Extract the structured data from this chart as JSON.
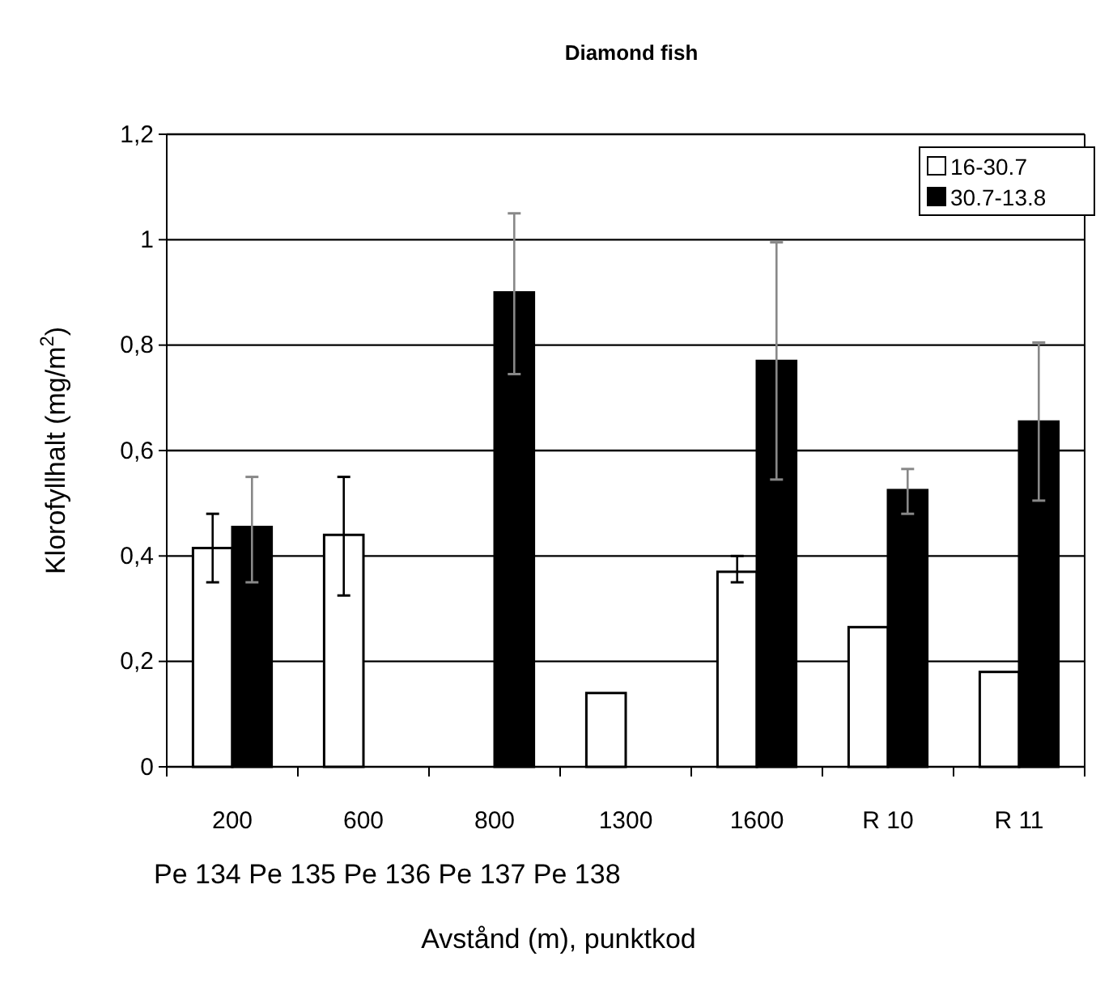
{
  "chart_data": {
    "type": "bar",
    "title": "Diamond fish",
    "xlabel": "Avstånd (m), punktkod",
    "ylabel": "Klorofyllhalt (mg/m$^{2}$)",
    "categories": [
      "200",
      "600",
      "800",
      "1300",
      "1600",
      "R 10",
      "R 11"
    ],
    "series": [
      {
        "name": "16-30.7",
        "color": "#ffffff",
        "values": [
          0.415,
          0.44,
          null,
          0.14,
          0.37,
          0.265,
          0.18
        ],
        "errors": [
          [
            0.35,
            0.48
          ],
          [
            0.325,
            0.55
          ],
          null,
          null,
          [
            0.35,
            0.4
          ],
          null,
          null
        ]
      },
      {
        "name": "30.7-13.8",
        "color": "#000000",
        "values": [
          0.455,
          null,
          0.9,
          null,
          0.77,
          0.525,
          0.655
        ],
        "errors": [
          [
            0.35,
            0.55
          ],
          null,
          [
            0.745,
            1.05
          ],
          null,
          [
            0.545,
            0.995
          ],
          [
            0.48,
            0.565
          ],
          [
            0.505,
            0.805
          ]
        ]
      }
    ],
    "annotations": [
      "Pe 134 Pe 135 Pe 136 Pe 137 Pe 138"
    ],
    "ylim": [
      0,
      1.2
    ],
    "yticks": [
      {
        "value": 0,
        "label": "0"
      },
      {
        "value": 0.2,
        "label": "0,2"
      },
      {
        "value": 0.4,
        "label": "0,4"
      },
      {
        "value": 0.6,
        "label": "0,6"
      },
      {
        "value": 0.8,
        "label": "0,8"
      },
      {
        "value": 1,
        "label": "1"
      },
      {
        "value": 1.2,
        "label": "1,2"
      }
    ],
    "grid": "y",
    "legend": "top right"
  }
}
